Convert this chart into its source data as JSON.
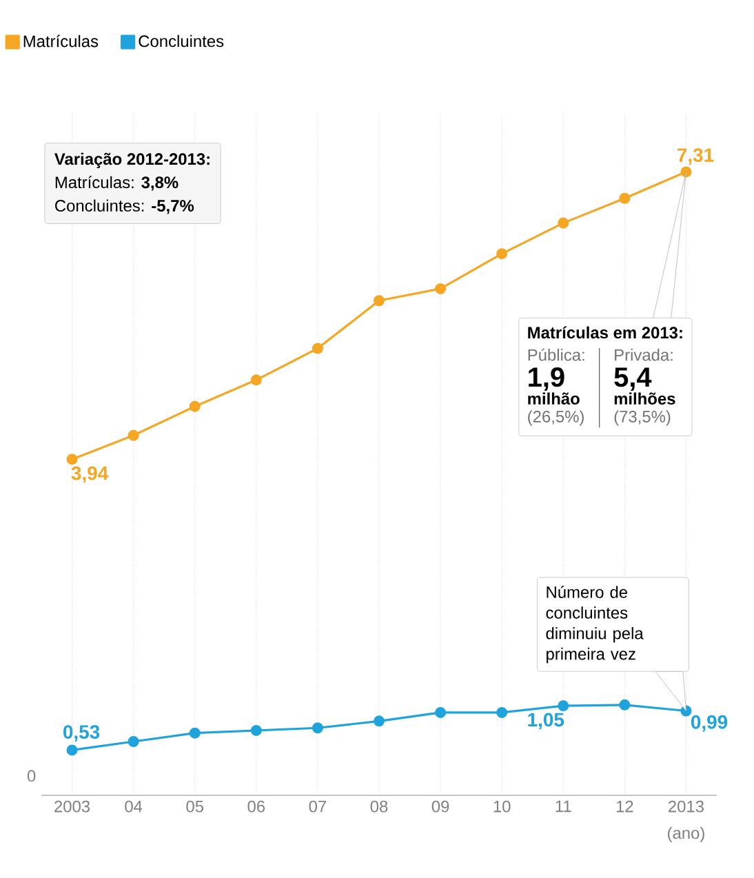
{
  "chart_data": {
    "type": "line",
    "categories": [
      "2003",
      "04",
      "05",
      "06",
      "07",
      "08",
      "09",
      "10",
      "11",
      "12",
      "2013"
    ],
    "xlabel": "(ano)",
    "series": [
      {
        "name": "Matrículas",
        "color": "#f5a623",
        "values": [
          3.94,
          4.22,
          4.56,
          4.87,
          5.24,
          5.8,
          5.94,
          6.35,
          6.71,
          7.0,
          7.31
        ],
        "value_labels": [
          "3,94",
          null,
          null,
          null,
          null,
          null,
          null,
          null,
          null,
          null,
          "7,31"
        ]
      },
      {
        "name": "Concluintes",
        "color": "#1fa3dc",
        "values": [
          0.53,
          0.63,
          0.73,
          0.76,
          0.79,
          0.87,
          0.97,
          0.97,
          1.05,
          1.06,
          0.99
        ],
        "value_labels": [
          "0,53",
          null,
          null,
          null,
          null,
          null,
          null,
          null,
          "1,05",
          null,
          "0,99"
        ]
      }
    ],
    "ylim": [
      0,
      8
    ],
    "grid": "x",
    "legend": "top left",
    "marker": "circle",
    "line_style": "solid",
    "annotations": [
      "Variação 2012-2013:",
      "Matrículas: **3,8%**",
      "Concluintes: **-5,7%**",
      "Matrículas em 2013:",
      "Pública:",
      "1,9",
      "milhão",
      "(26,5%)",
      "Privada:",
      "5,4",
      "milhões",
      "(73,5%)",
      "Número de concluintes diminuiu pela primeira vez",
      "0"
    ]
  }
}
